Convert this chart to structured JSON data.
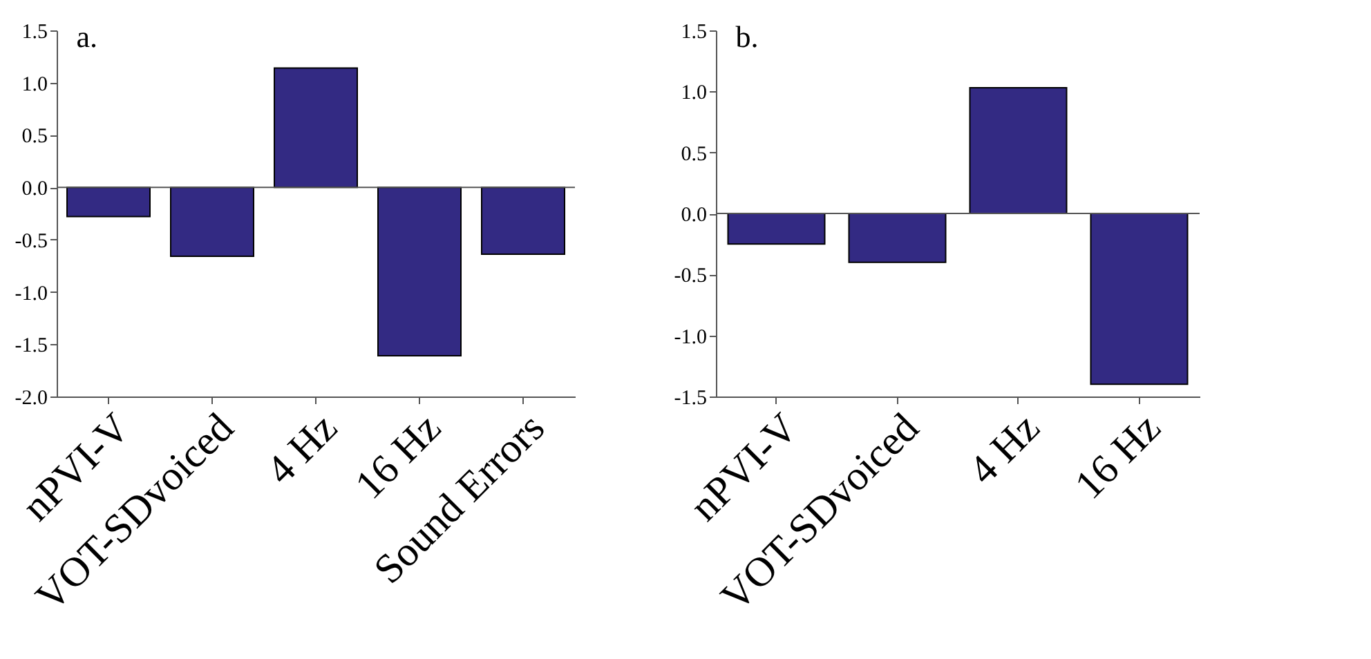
{
  "chart_data": [
    {
      "type": "bar",
      "title": "a.",
      "categories": [
        "nPVI-V",
        "VOT-SDvoiced",
        "4 Hz",
        "16 Hz",
        "Sound Errors"
      ],
      "values": [
        -0.28,
        -0.66,
        1.14,
        -1.61,
        -0.64
      ],
      "color": "#332a83",
      "ylim": [
        -2.0,
        1.5
      ],
      "yticks": [
        {
          "value": -2,
          "label": "-2.0"
        },
        -1.5,
        {
          "value": -1,
          "label": "-1.0"
        },
        -0.5,
        {
          "value": 0,
          "label": "0.0"
        },
        0.5,
        {
          "value": 1,
          "label": "1.0"
        },
        1.5
      ],
      "ref_lines": [
        {
          "axis": "y",
          "value": 0
        }
      ],
      "grid": false
    },
    {
      "type": "bar",
      "title": "b.",
      "categories": [
        "nPVI-V",
        "VOT-SDvoiced",
        "4 Hz",
        "16 Hz"
      ],
      "values": [
        -0.25,
        -0.4,
        1.03,
        -1.4
      ],
      "color": "#332a83",
      "ylim": [
        -1.5,
        1.5
      ],
      "yticks": [
        -1.5,
        {
          "value": -1,
          "label": "-1.0"
        },
        -0.5,
        {
          "value": 0,
          "label": "0.0"
        },
        0.5,
        {
          "value": 1,
          "label": "1.0"
        },
        1.5
      ],
      "ref_lines": [
        {
          "axis": "y",
          "value": 0
        }
      ],
      "grid": false
    }
  ]
}
